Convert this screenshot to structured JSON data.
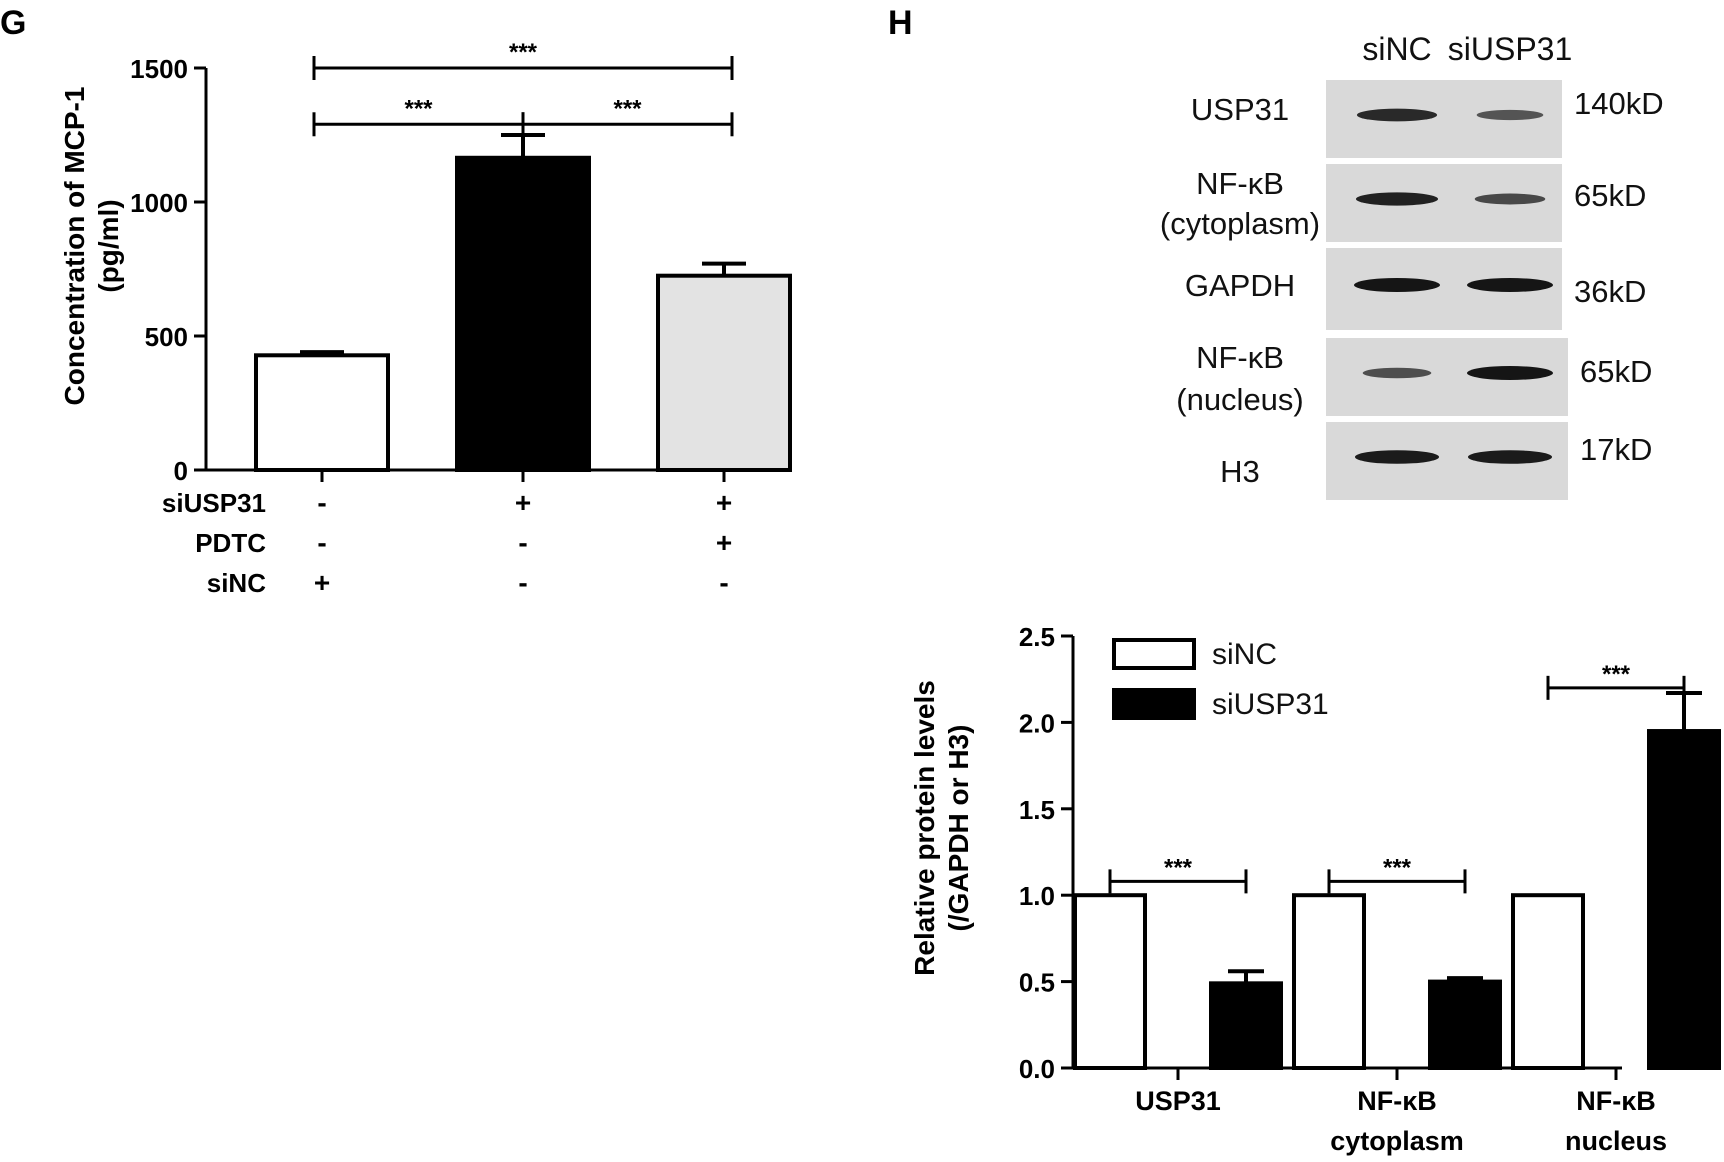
{
  "panel_labels": {
    "left": "G",
    "right": "H"
  },
  "colors": {
    "black": "#000000",
    "white": "#ffffff",
    "light_gray": "#e3e3e3",
    "blot_bg": "#d9d9d9",
    "band": "#151515"
  },
  "chart_data": [
    {
      "type": "bar",
      "panel": "G",
      "ylabel_line1": "Concentration of MCP-1",
      "ylabel_line2": "(pg/ml)",
      "ylim": [
        0,
        1500
      ],
      "yticks": [
        0,
        500,
        1000,
        1500
      ],
      "ytick_labels": [
        "0",
        "500",
        "1000",
        "1500"
      ],
      "bars": [
        {
          "value": 428,
          "error": 12,
          "fill": "#ffffff"
        },
        {
          "value": 1165,
          "error": 85,
          "fill": "#000000"
        },
        {
          "value": 725,
          "error": 45,
          "fill": "#e3e3e3"
        }
      ],
      "treatment_rows": [
        {
          "label": "siUSP31",
          "signs": [
            "-",
            "+",
            "+"
          ]
        },
        {
          "label": "PDTC",
          "signs": [
            "-",
            "-",
            "+"
          ]
        },
        {
          "label": "siNC",
          "signs": [
            "+",
            "-",
            "-"
          ]
        }
      ],
      "significance": [
        {
          "from": 0,
          "to": 2,
          "y": 1500,
          "label": "***"
        },
        {
          "from": 0,
          "to": 1,
          "y": 1290,
          "label": "***"
        },
        {
          "from": 1,
          "to": 2,
          "y": 1290,
          "label": "***"
        }
      ]
    },
    {
      "type": "bar",
      "panel": "H",
      "ylabel_line1": "Relative protein levels",
      "ylabel_line2": "(/GAPDH or H3)",
      "ylim": [
        0,
        2.5
      ],
      "yticks": [
        0,
        0.5,
        1,
        1.5,
        2,
        2.5
      ],
      "ytick_labels": [
        "0.0",
        "0.5",
        "1.0",
        "1.5",
        "2.0",
        "2.5"
      ],
      "categories": [
        {
          "line1": "USP31",
          "line2": ""
        },
        {
          "line1": "NF-κB",
          "line2": "cytoplasm"
        },
        {
          "line1": "NF-κB",
          "line2": "nucleus"
        }
      ],
      "series": [
        {
          "name": "siNC",
          "values": [
            1.0,
            1.0,
            1.0
          ],
          "errors": [
            0,
            0,
            0
          ],
          "fill": "#ffffff"
        },
        {
          "name": "siUSP31",
          "values": [
            0.49,
            0.5,
            1.95
          ],
          "errors": [
            0.07,
            0.02,
            0.22
          ],
          "fill": "#000000"
        }
      ],
      "significance": [
        {
          "category": 0,
          "y": 1.08,
          "label": "***"
        },
        {
          "category": 1,
          "y": 1.08,
          "label": "***"
        },
        {
          "category": 2,
          "y": 2.2,
          "label": "***"
        }
      ],
      "legend_position": "top-left"
    }
  ],
  "western_blot": {
    "lane_labels": [
      "siNC",
      "siUSP31"
    ],
    "rows": [
      {
        "label_line1": "USP31",
        "label_line2": "",
        "size": "140kD",
        "intensity": [
          0.85,
          0.5
        ]
      },
      {
        "label_line1": "NF-κB",
        "label_line2": "(cytoplasm)",
        "size": "65kD",
        "intensity": [
          0.9,
          0.6
        ]
      },
      {
        "label_line1": "GAPDH",
        "label_line2": "",
        "size": "36kD",
        "intensity": [
          1.0,
          1.0
        ]
      },
      {
        "label_line1": "NF-κB",
        "label_line2": "(nucleus)",
        "size": "65kD",
        "intensity": [
          0.55,
          1.0
        ]
      },
      {
        "label_line1": "H3",
        "label_line2": "",
        "size": "17kD",
        "intensity": [
          0.95,
          0.95
        ]
      }
    ]
  }
}
